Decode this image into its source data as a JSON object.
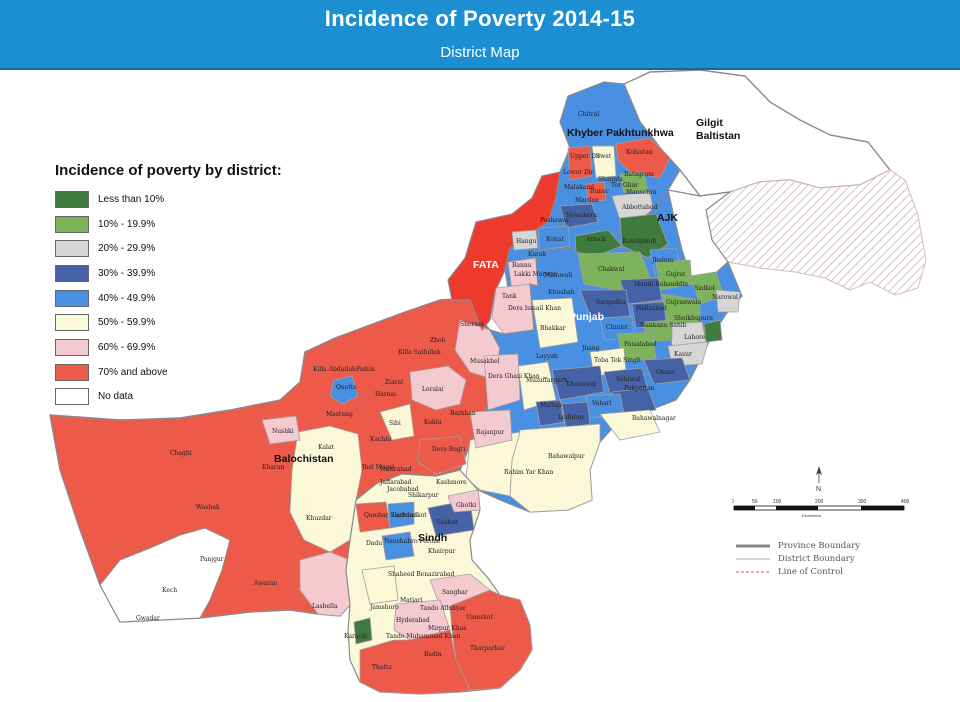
{
  "header": {
    "title": "Incidence of Poverty 2014-15",
    "subtitle": "District Map"
  },
  "legend": {
    "title": "Incidence of poverty by district:",
    "items": [
      {
        "label": "Less than 10%",
        "color": "#3f7a3f"
      },
      {
        "label": "10% - 19.9%",
        "color": "#7db35a"
      },
      {
        "label": "20% - 29.9%",
        "color": "#d6d6d6"
      },
      {
        "label": "30% - 39.9%",
        "color": "#4662a6"
      },
      {
        "label": "40% - 49.9%",
        "color": "#4a90e2"
      },
      {
        "label": "50% - 59.9%",
        "color": "#fbf8d8"
      },
      {
        "label": "60% - 69.9%",
        "color": "#f4c9cf"
      },
      {
        "label": "70% and above",
        "color": "#ee5a4a"
      },
      {
        "label": "No data",
        "color": "#ffffff"
      }
    ]
  },
  "provinces": {
    "khyber": "Khyber Pakhtunkhwa",
    "gilgit_1": "Gilgit",
    "gilgit_2": "Baltistan",
    "ajk": "AJK",
    "fata": "FATA",
    "punjab": "Punjab",
    "balochistan": "Balochistan",
    "sindh": "Sindh"
  },
  "districts": {
    "chitral": "Chitral",
    "kohistan": "Kohistan",
    "upper_dir": "Upper Dir",
    "swat": "Swat",
    "lower_dir": "Lower Dir",
    "shangla": "Shangla",
    "batagram": "Batagram",
    "tor_ghar": "Tor Ghar",
    "malakand": "Malakand",
    "buner": "Buner",
    "mansehra": "Mansehra",
    "mardan": "Mardan",
    "peshawar": "Peshawar",
    "nowshera": "Nowshera",
    "abbottabad": "Abbottabad",
    "attock": "Attock",
    "rawalpindi": "Rawalpindi",
    "kohat": "Kohat",
    "hangu": "Hangu",
    "karak": "Karak",
    "bannu": "Bannu",
    "lakki_marwat": "Lakki Marwat",
    "chakwal": "Chakwal",
    "jhelum": "Jhelum",
    "gujrat": "Gujrat",
    "sialkot": "Sialkot",
    "narowal": "Narowal",
    "mianwali": "Mianwali",
    "khushab": "Khushab",
    "mandi_bahauddin": "Mandi Bahauddin",
    "hafizabad": "Hafizabad",
    "gujranwala": "Gujranwala",
    "sargodha": "Sargodha",
    "sheikhupura": "Sheikhupura",
    "nankana_sahib": "Nankana Sahib",
    "lahore": "Lahore",
    "tank": "Tank",
    "dera_ismail_khan": "Dera Ismail Khan",
    "bhakkar": "Bhakkar",
    "chiniot": "Chiniot",
    "faisalabad": "Faisalabad",
    "kasur": "Kasur",
    "sherani": "Sherani",
    "zhob": "Zhob",
    "killa_saifullah": "Killa Saifullah",
    "killa_abdullah": "Killa Abdullah",
    "pishin": "Pishin",
    "quetta": "Quetta",
    "ziarat": "Ziarat",
    "harnai": "Harnai",
    "loralai": "Loralai",
    "musakhel": "Musakhel",
    "layyah": "Layyah",
    "jhang": "Jhang",
    "toba_tek_singh": "Toba Tek Singh",
    "sahiwal": "Sahiwal",
    "okara": "Okara",
    "pakpattan": "Pakpattan",
    "dera_ghazi_khan": "Dera Ghazi Khan",
    "muzaffargarh": "Muzaffargarh",
    "khanewal": "Khanewal",
    "multan": "Multan",
    "lodhran": "Lodhran",
    "vehari": "Vehari",
    "bahawalnagar": "Bahawalnagar",
    "mastung": "Mastung",
    "nushki": "Nushki",
    "sibi": "Sibi",
    "kohlu": "Kohlu",
    "barkhan": "Barkhan",
    "kachhi": "Kachhi",
    "dera_bugti": "Dera Bugti",
    "rajanpur": "Rajanpur",
    "chaghi": "Chaghi",
    "kharan": "Kharan",
    "kalat": "Kalat",
    "jhal_magsi": "Jhal Magsi",
    "nasirabad": "Nasirabad",
    "jaffarabad": "Jaffarabad",
    "jacobabad": "Jacobabad",
    "kashmore": "Kashmore",
    "shikarpur": "Shikarpur",
    "bahawalpur": "Bahawalpur",
    "rahim_yar_khan": "Rahim Yar Khan",
    "washuk": "Washuk",
    "khuzdar": "Khuzdar",
    "qambar_shahdadkot": "Qambar Shahdadkot",
    "larkana": "Larkana",
    "ghotki": "Ghotki",
    "sukkur": "Sukkur",
    "dadu": "Dadu",
    "naushahro_feroze": "Naushahro Feroze",
    "khairpur": "Khairpur",
    "panjgur": "Panjgur",
    "kech": "Kech",
    "gwadar": "Gwadar",
    "awaran": "Awaran",
    "shaheed_benazirabad": "Shaheed Benazirabad",
    "sanghar": "Sanghar",
    "jamshoro": "Jamshoro",
    "matiari": "Matiari",
    "tando_allahyar": "Tando Allahyar",
    "hyderabad": "Hyderabad",
    "tando_muhammad_khan": "Tando Muhammad Khan",
    "mirpur_khas": "Mirpur Khas",
    "umerkot": "Umerkot",
    "lasbella": "Lasbella",
    "karachi": "Karachi",
    "thatta": "Thatta",
    "badin": "Badin",
    "tharparkar": "Tharparkar"
  },
  "compass": {
    "north": "N"
  },
  "scale": {
    "ticks": [
      "0",
      "50",
      "100",
      "200",
      "300",
      "400"
    ],
    "unit": "Kilometers"
  },
  "boundary_key": {
    "province": "Province Boundary",
    "district": "District Boundary",
    "line_of_control": "Line of Control"
  }
}
